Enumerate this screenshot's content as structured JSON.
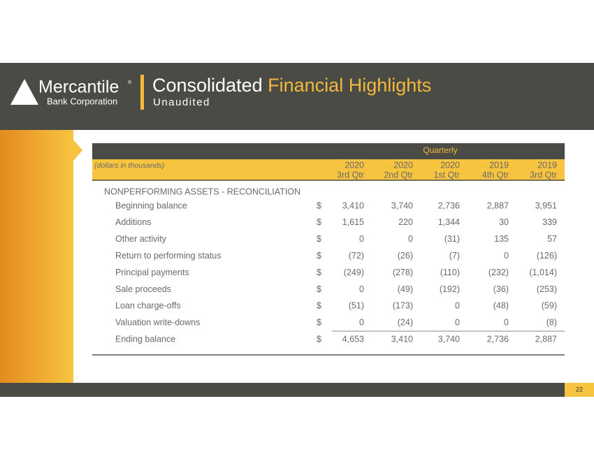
{
  "header": {
    "logo_name": "Mercantile",
    "logo_mark": "®",
    "logo_sub": "Bank Corporation",
    "title_part1": "Consolidated",
    "title_part2": "Financial Highlights",
    "subtitle": "Unaudited"
  },
  "table": {
    "group_header": "Quarterly",
    "units": "(dollars in thousands)",
    "columns": [
      {
        "year": "2020",
        "quarter": "3rd Qtr"
      },
      {
        "year": "2020",
        "quarter": "2nd Qtr"
      },
      {
        "year": "2020",
        "quarter": "1st Qtr"
      },
      {
        "year": "2019",
        "quarter": "4th Qtr"
      },
      {
        "year": "2019",
        "quarter": "3rd Qtr"
      }
    ],
    "section": "NONPERFORMING ASSETS - RECONCILIATION",
    "rows": [
      {
        "label": "Beginning balance",
        "currency": "$",
        "values": [
          "3,410",
          "3,740",
          "2,736",
          "2,887",
          "3,951"
        ]
      },
      {
        "label": "Additions",
        "currency": "$",
        "values": [
          "1,615",
          "220",
          "1,344",
          "30",
          "339"
        ]
      },
      {
        "label": "Other activity",
        "currency": "$",
        "values": [
          "0",
          "0",
          "(31)",
          "135",
          "57"
        ]
      },
      {
        "label": "Return to performing status",
        "currency": "$",
        "values": [
          "(72)",
          "(26)",
          "(7)",
          "0",
          "(126)"
        ]
      },
      {
        "label": "Principal payments",
        "currency": "$",
        "values": [
          "(249)",
          "(278)",
          "(110)",
          "(232)",
          "(1,014)"
        ]
      },
      {
        "label": "Sale proceeds",
        "currency": "$",
        "values": [
          "0",
          "(49)",
          "(192)",
          "(36)",
          "(253)"
        ]
      },
      {
        "label": "Loan charge-offs",
        "currency": "$",
        "values": [
          "(51)",
          "(173)",
          "0",
          "(48)",
          "(59)"
        ]
      },
      {
        "label": "Valuation write-downs",
        "currency": "$",
        "values": [
          "0",
          "(24)",
          "0",
          "0",
          "(8)"
        ]
      },
      {
        "label": "Ending balance",
        "currency": "$",
        "values": [
          "4,653",
          "3,410",
          "3,740",
          "2,736",
          "2,887"
        ]
      }
    ]
  },
  "footer": {
    "page_number": "22"
  }
}
